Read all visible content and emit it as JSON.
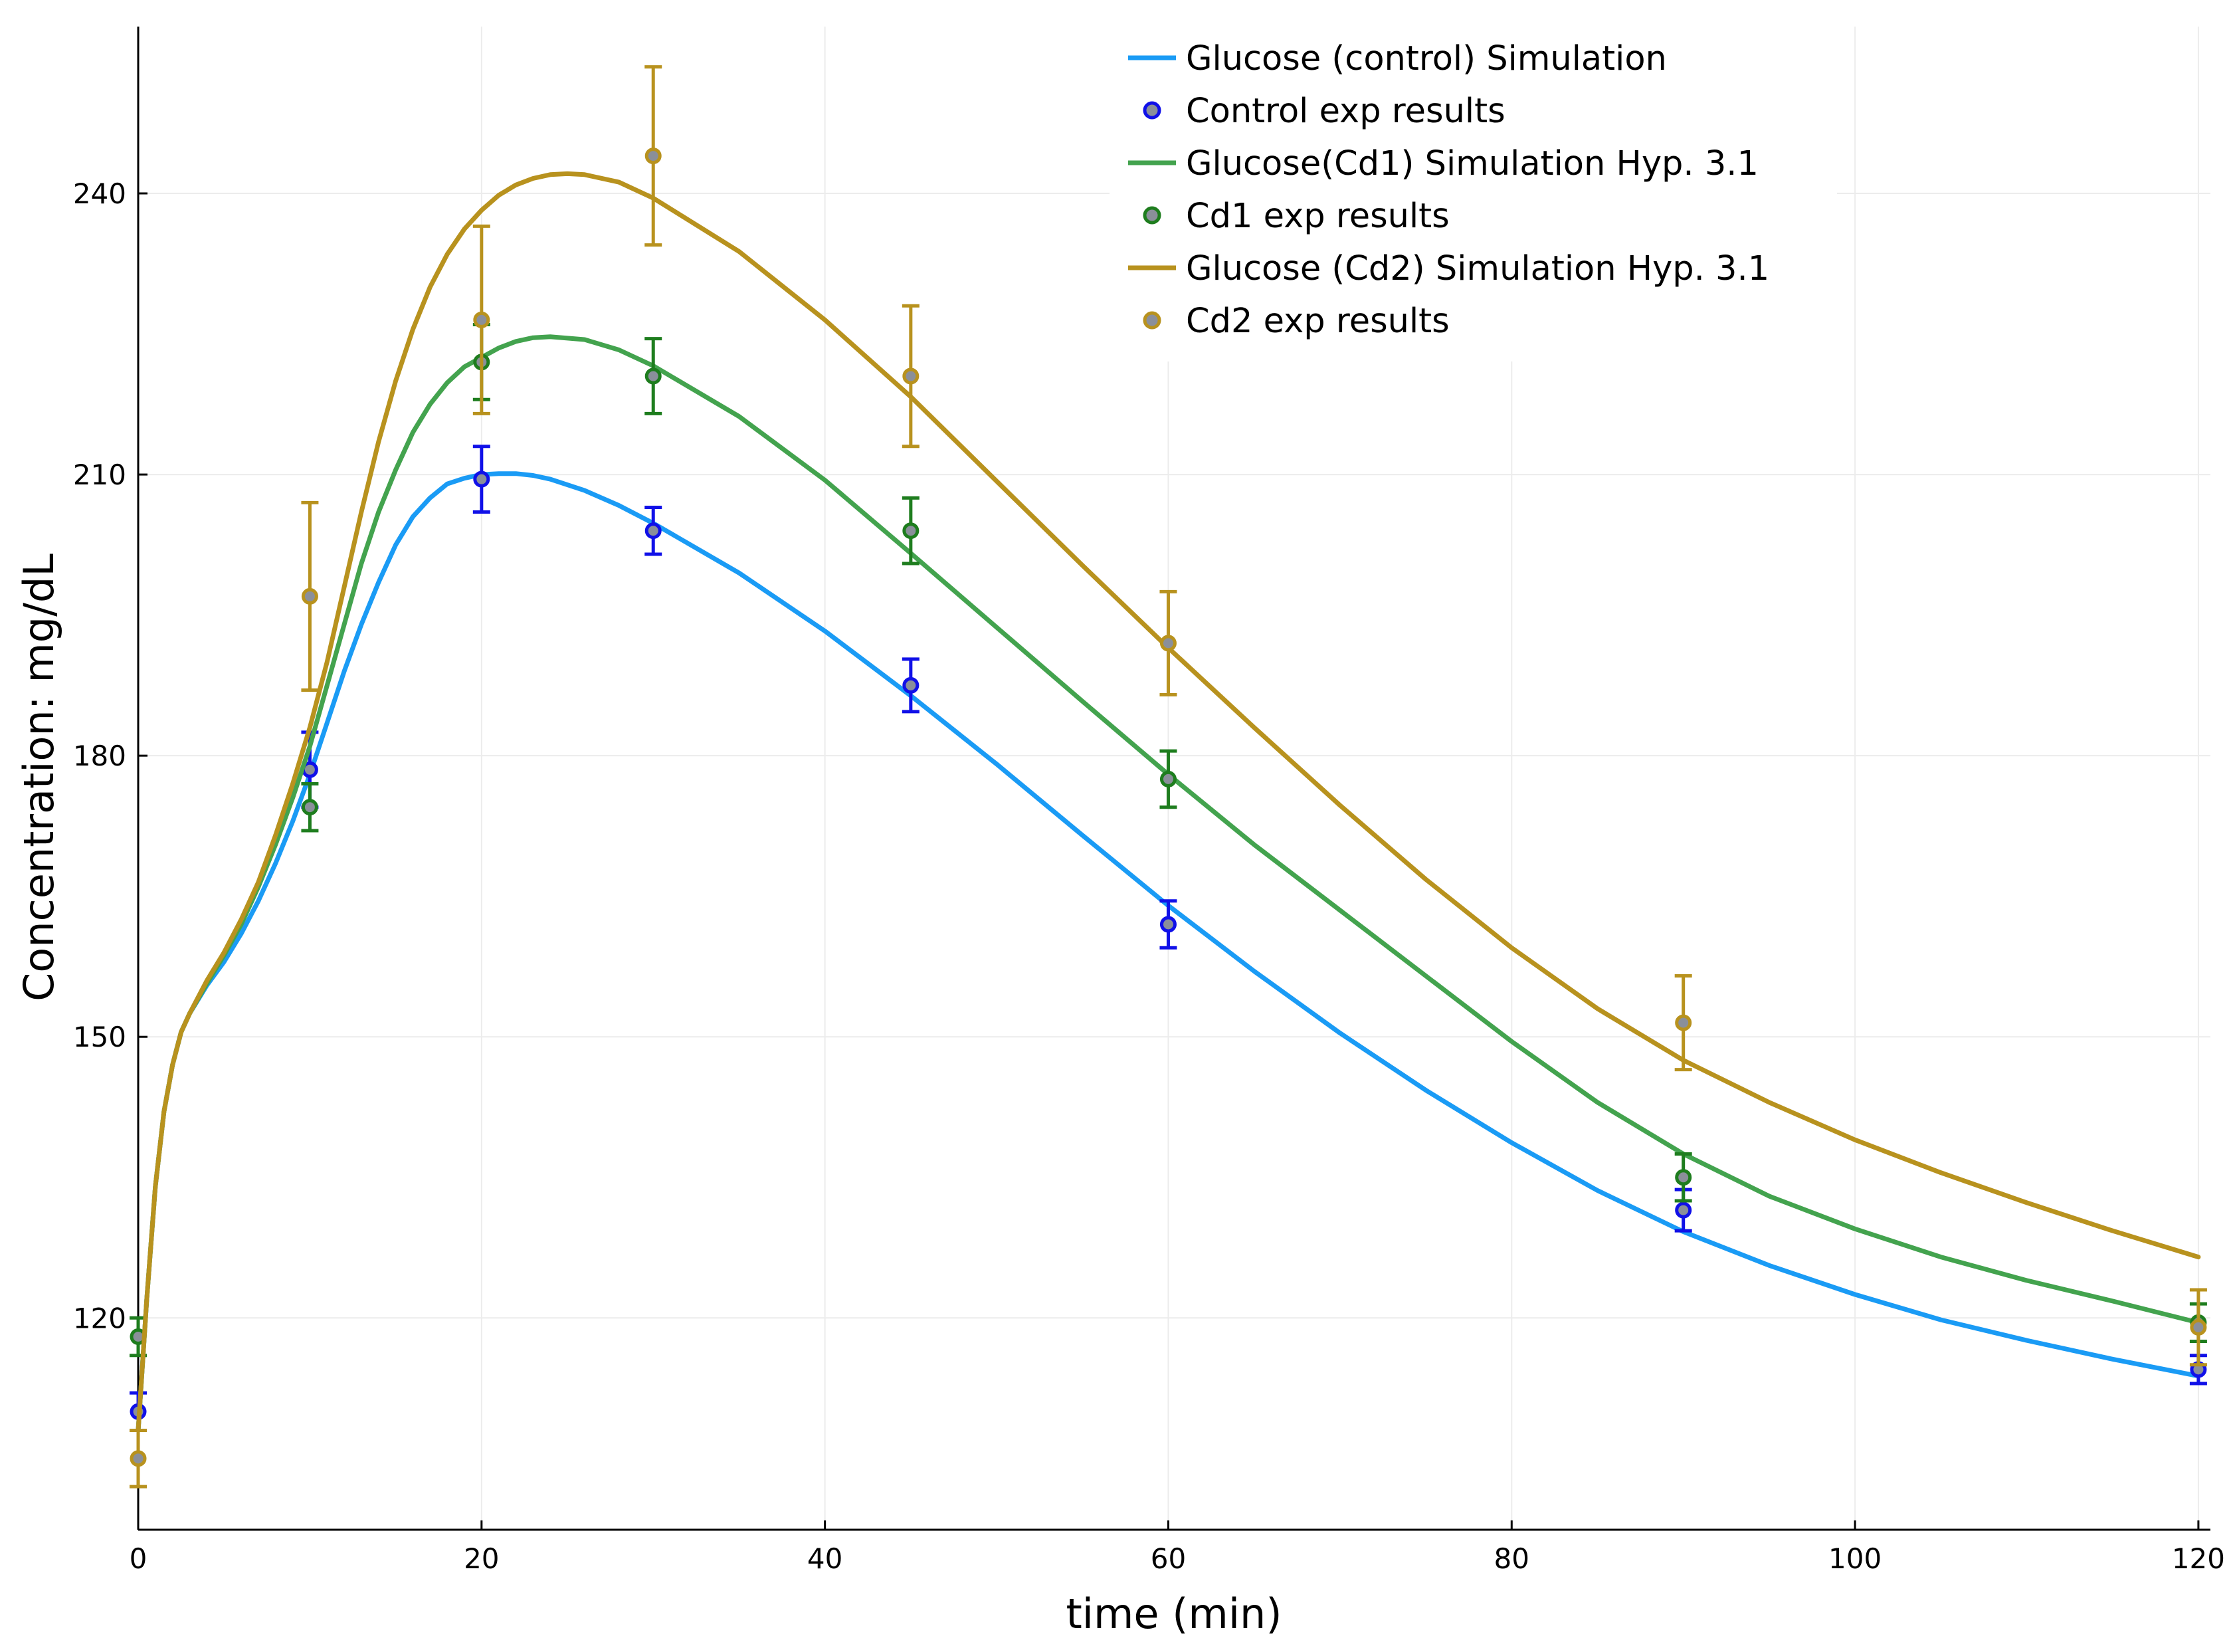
{
  "chart_data": {
    "type": "line",
    "title": "",
    "xlabel": "time (min)",
    "ylabel": "Concentration: mg/dL",
    "xlim": [
      0,
      120.7
    ],
    "ylim": [
      97.4,
      257.8
    ],
    "xticks": [
      0,
      20,
      40,
      60,
      80,
      100,
      120
    ],
    "yticks": [
      120,
      150,
      180,
      210,
      240
    ],
    "grid": true,
    "legend_position": "top-right",
    "series": [
      {
        "name": "Glucose (control) Simulation",
        "kind": "line",
        "color": "#1a9bf5",
        "x": [
          0,
          0.5,
          1,
          1.5,
          2,
          2.5,
          3,
          4,
          5,
          6,
          7,
          8,
          9,
          10,
          11,
          12,
          13,
          14,
          15,
          16,
          17,
          18,
          19,
          20,
          21,
          22,
          23,
          24,
          26,
          28,
          30,
          35,
          40,
          45,
          50,
          55,
          60,
          65,
          70,
          75,
          80,
          85,
          90,
          95,
          100,
          105,
          110,
          115,
          120
        ],
        "y": [
          108,
          122,
          134,
          142,
          147,
          150.5,
          152.5,
          155.5,
          158,
          161,
          164.5,
          168.5,
          173,
          178,
          183.5,
          189,
          194,
          198.5,
          202.5,
          205.5,
          207.5,
          209,
          209.6,
          210,
          210.1,
          210.1,
          209.9,
          209.5,
          208.3,
          206.7,
          204.8,
          199.5,
          193.3,
          186.4,
          179.1,
          171.5,
          164,
          157,
          150.4,
          144.3,
          138.7,
          133.6,
          129.2,
          125.6,
          122.5,
          119.8,
          117.6,
          115.6,
          113.8
        ]
      },
      {
        "name": "Control exp results",
        "kind": "scatter",
        "color": "#1010e8",
        "x": [
          0,
          10,
          20,
          30,
          45,
          60,
          90,
          120
        ],
        "y": [
          110,
          178.5,
          209.5,
          204,
          187.5,
          162,
          131.5,
          114.5
        ],
        "err": [
          2,
          4,
          3.5,
          2.5,
          2.8,
          2.5,
          2.2,
          1.5
        ]
      },
      {
        "name": "Glucose(Cd1) Simulation Hyp. 3.1",
        "kind": "line",
        "color": "#43a34e",
        "x": [
          0,
          0.5,
          1,
          1.5,
          2,
          2.5,
          3,
          4,
          5,
          6,
          7,
          8,
          9,
          10,
          11,
          12,
          13,
          14,
          15,
          16,
          17,
          18,
          19,
          20,
          21,
          22,
          23,
          24,
          26,
          28,
          30,
          35,
          40,
          45,
          50,
          55,
          60,
          65,
          70,
          75,
          80,
          85,
          90,
          95,
          100,
          105,
          110,
          115,
          120
        ],
        "y": [
          108,
          122,
          134,
          142,
          147,
          150.5,
          152.5,
          155.7,
          158.7,
          162,
          166,
          170.5,
          175.5,
          181,
          187.5,
          194,
          200.5,
          206,
          210.5,
          214.5,
          217.5,
          219.8,
          221.5,
          222.5,
          223.5,
          224.2,
          224.6,
          224.7,
          224.4,
          223.3,
          221.6,
          216.2,
          209.4,
          201.6,
          193.7,
          185.8,
          178,
          170.5,
          163.5,
          156.5,
          149.5,
          143,
          137.5,
          133,
          129.5,
          126.5,
          124,
          121.8,
          119.5
        ]
      },
      {
        "name": "Cd1 exp results",
        "kind": "scatter",
        "color": "#1e7d1e",
        "x": [
          0,
          10,
          20,
          30,
          45,
          60,
          90,
          120
        ],
        "y": [
          118,
          174.5,
          222,
          220.5,
          204,
          177.5,
          135,
          119.5
        ],
        "err": [
          2,
          2.5,
          4,
          4,
          3.5,
          3,
          2.5,
          2
        ]
      },
      {
        "name": "Glucose (Cd2) Simulation  Hyp. 3.1",
        "kind": "line",
        "color": "#b8921e",
        "x": [
          0,
          0.5,
          1,
          1.5,
          2,
          2.5,
          3,
          4,
          5,
          6,
          7,
          8,
          9,
          10,
          11,
          12,
          13,
          14,
          15,
          16,
          17,
          18,
          19,
          20,
          21,
          22,
          23,
          24,
          25,
          26,
          28,
          30,
          35,
          40,
          45,
          50,
          55,
          60,
          65,
          70,
          75,
          80,
          85,
          90,
          95,
          100,
          105,
          110,
          115,
          120
        ],
        "y": [
          108,
          122,
          134,
          142,
          147,
          150.5,
          152.5,
          156,
          159,
          162.5,
          166.5,
          171.5,
          177,
          183,
          190,
          198,
          206,
          213.5,
          220,
          225.5,
          230,
          233.5,
          236.2,
          238.2,
          239.8,
          240.9,
          241.6,
          242,
          242.1,
          242,
          241.2,
          239.5,
          233.8,
          226.5,
          218.3,
          209.3,
          200.3,
          191.5,
          183,
          174.7,
          166.8,
          159.5,
          153,
          147.5,
          143,
          139,
          135.5,
          132.3,
          129.3,
          126.5
        ]
      },
      {
        "name": "Cd2 exp results",
        "kind": "scatter",
        "color": "#b8921e",
        "x": [
          0,
          10,
          20,
          30,
          45,
          60,
          90,
          120
        ],
        "y": [
          105,
          197,
          226.5,
          244,
          220.5,
          192,
          151.5,
          119
        ],
        "err": [
          3,
          10,
          10,
          9.5,
          7.5,
          5.5,
          5,
          4
        ]
      }
    ]
  }
}
